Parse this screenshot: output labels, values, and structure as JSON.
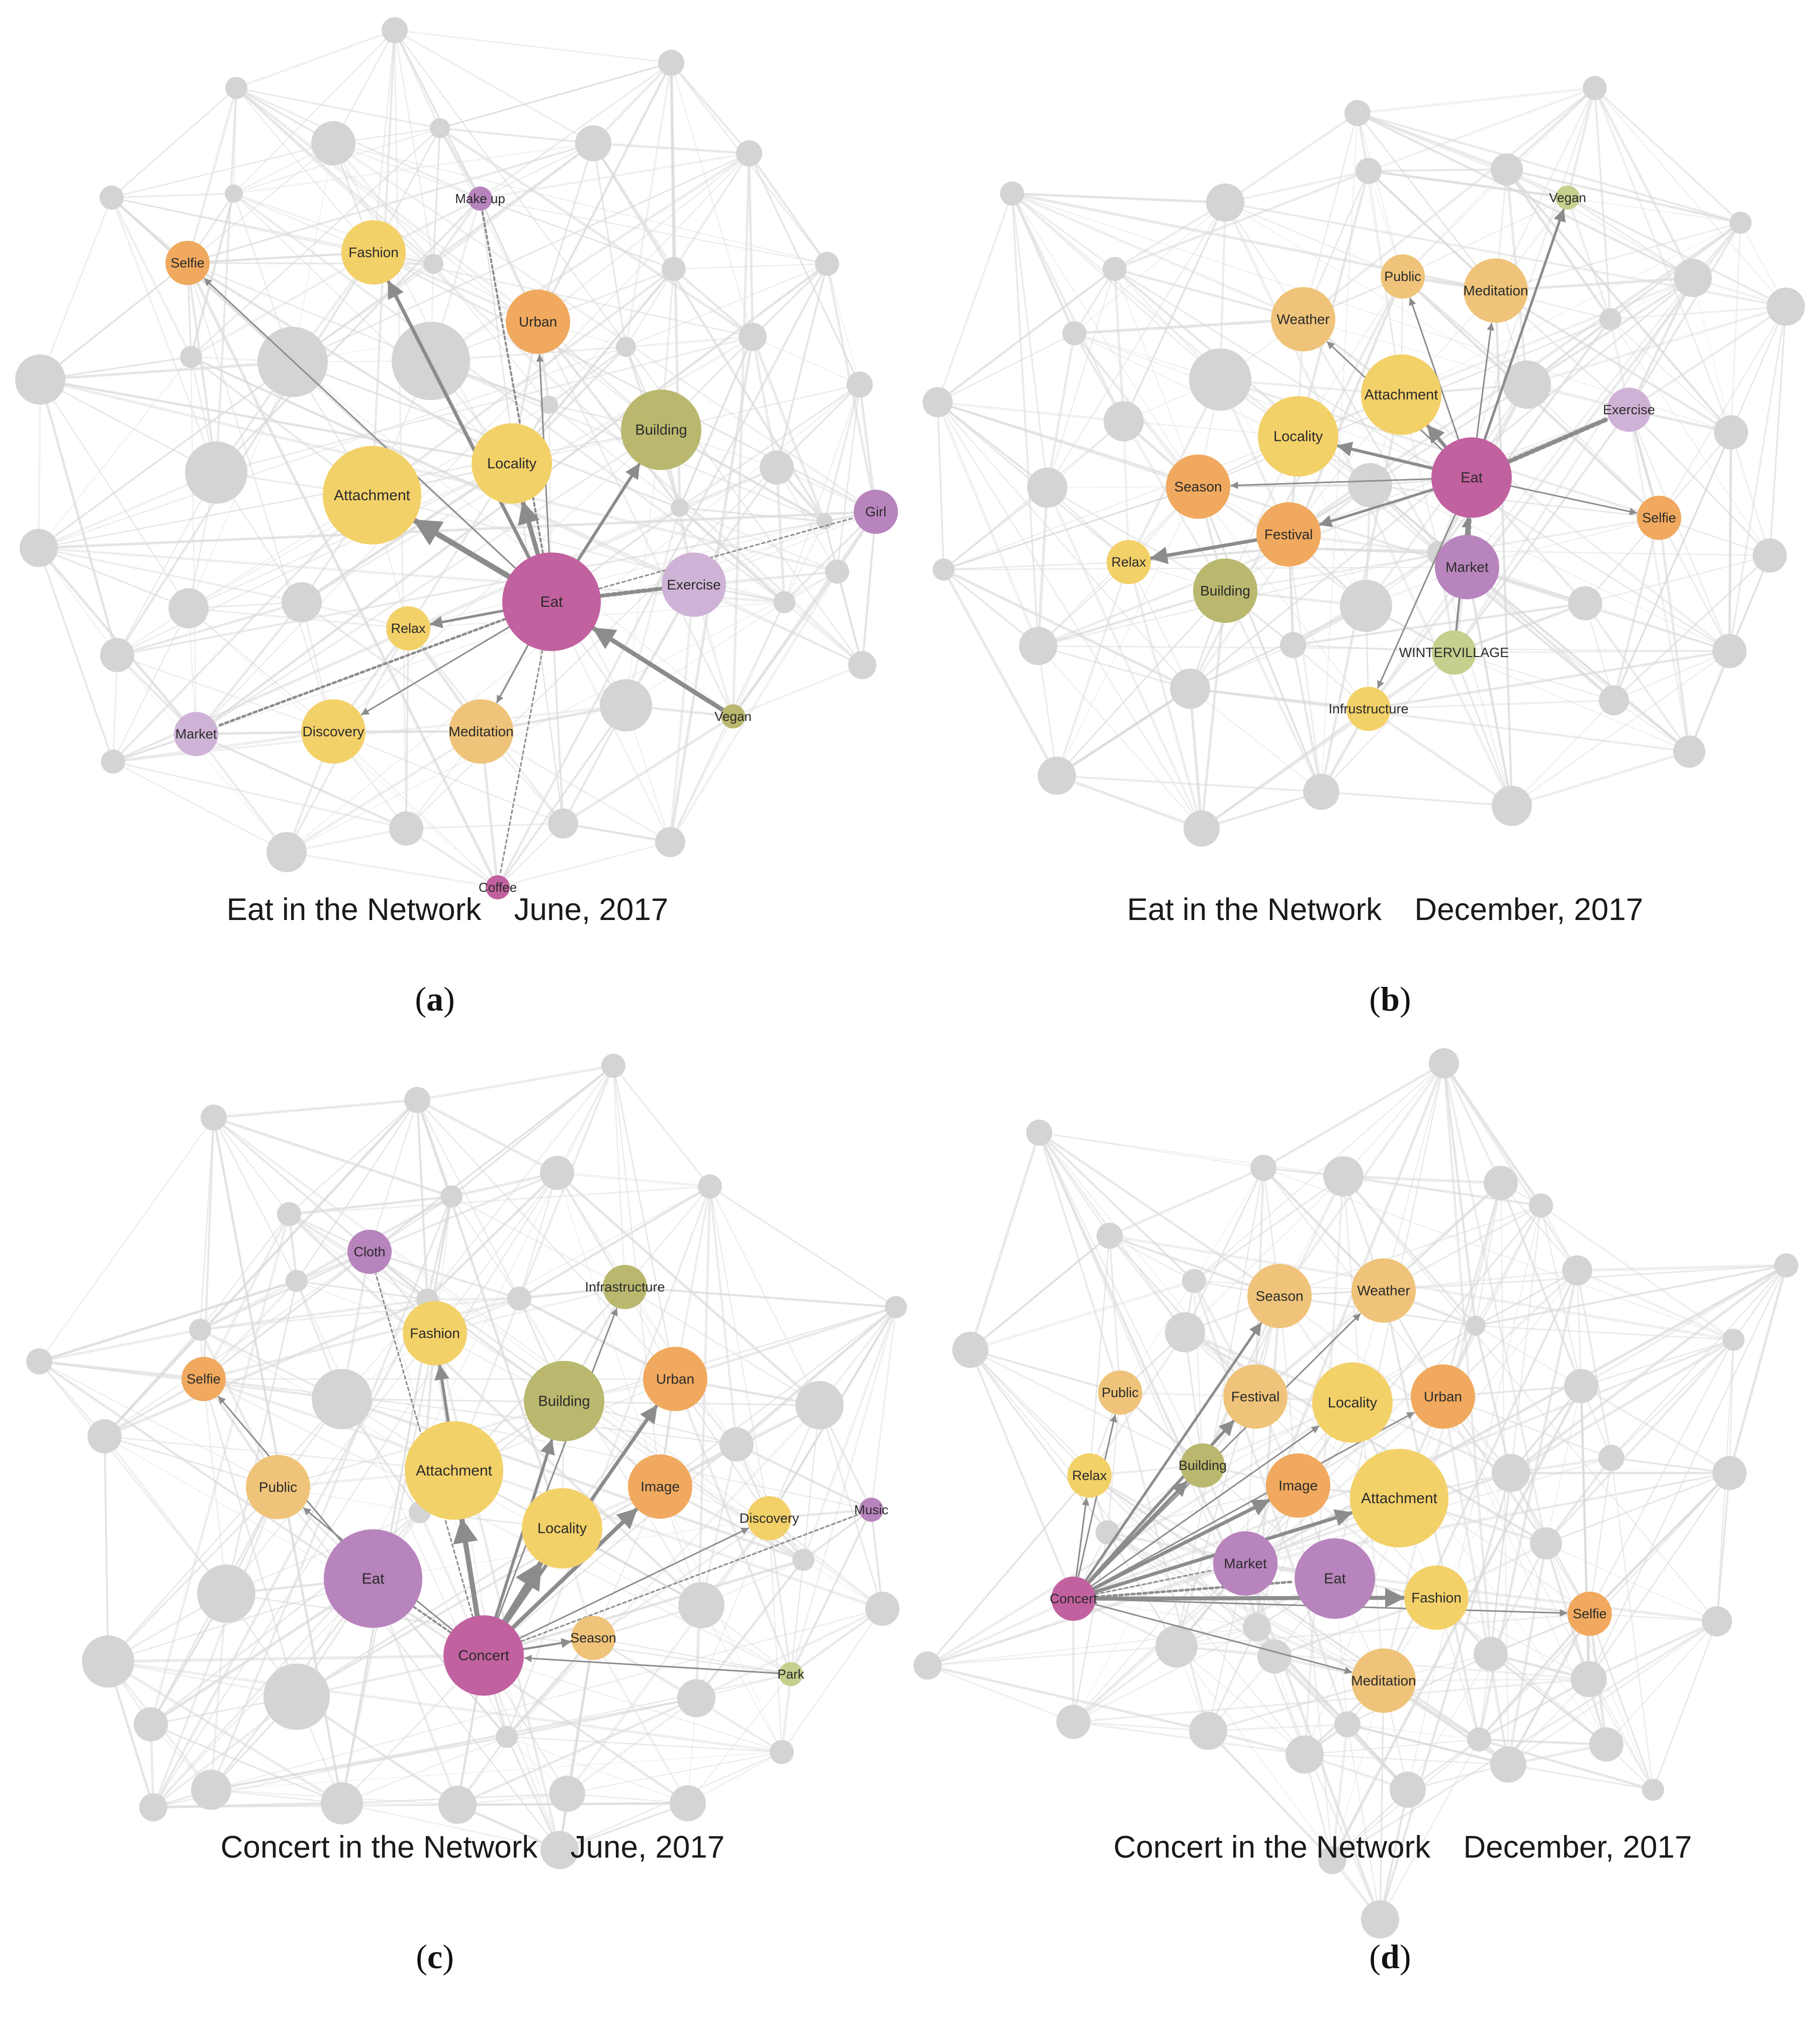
{
  "colors": {
    "background_node": "#d4d4d4",
    "background_edge": "#dadada",
    "arrow": "#8c8c8c",
    "magenta": "#c2619f",
    "lilac": "#cfb3d6",
    "purple": "#b884bd",
    "yellow": "#f3d169",
    "light_orange": "#efc47a",
    "orange": "#f0a95e",
    "olive": "#b9b86e",
    "light_olive": "#c6cf8d"
  },
  "panels": [
    {
      "id": "a",
      "letter": "a",
      "caption_main": "Eat in the Network",
      "caption_date": "June, 2017",
      "center": "Eat",
      "nodes": [
        {
          "label": "Eat",
          "color": "magenta",
          "size": 5
        },
        {
          "label": "Make up",
          "color": "purple",
          "size": 1
        },
        {
          "label": "Fashion",
          "color": "yellow",
          "size": 3
        },
        {
          "label": "Selfie",
          "color": "orange",
          "size": 2
        },
        {
          "label": "Urban",
          "color": "orange",
          "size": 3
        },
        {
          "label": "Building",
          "color": "olive",
          "size": 4
        },
        {
          "label": "Locality",
          "color": "yellow",
          "size": 4
        },
        {
          "label": "Attachment",
          "color": "yellow",
          "size": 5
        },
        {
          "label": "Girl",
          "color": "purple",
          "size": 2
        },
        {
          "label": "Exercise",
          "color": "lilac",
          "size": 3
        },
        {
          "label": "Relax",
          "color": "yellow",
          "size": 2
        },
        {
          "label": "Market",
          "color": "lilac",
          "size": 2
        },
        {
          "label": "Discovery",
          "color": "yellow",
          "size": 3
        },
        {
          "label": "Meditation",
          "color": "light_orange",
          "size": 3
        },
        {
          "label": "Vegan",
          "color": "olive",
          "size": 1
        },
        {
          "label": "Coffee",
          "color": "magenta",
          "size": 1
        }
      ]
    },
    {
      "id": "b",
      "letter": "b",
      "caption_main": "Eat in the Network",
      "caption_date": "December, 2017",
      "center": "Eat",
      "nodes": [
        {
          "label": "Eat",
          "color": "magenta",
          "size": 4
        },
        {
          "label": "Vegan",
          "color": "light_olive",
          "size": 1
        },
        {
          "label": "Public",
          "color": "light_orange",
          "size": 2
        },
        {
          "label": "Meditation",
          "color": "light_orange",
          "size": 3
        },
        {
          "label": "Weather",
          "color": "light_orange",
          "size": 3
        },
        {
          "label": "Attachment",
          "color": "yellow",
          "size": 4
        },
        {
          "label": "Exercise",
          "color": "lilac",
          "size": 2
        },
        {
          "label": "Locality",
          "color": "yellow",
          "size": 4
        },
        {
          "label": "Season",
          "color": "orange",
          "size": 3
        },
        {
          "label": "Festival",
          "color": "orange",
          "size": 3
        },
        {
          "label": "Selfie",
          "color": "orange",
          "size": 2
        },
        {
          "label": "Relax",
          "color": "yellow",
          "size": 2
        },
        {
          "label": "Building",
          "color": "olive",
          "size": 3
        },
        {
          "label": "Market",
          "color": "purple",
          "size": 3
        },
        {
          "label": "WINTERVILLAGE",
          "color": "light_olive",
          "size": 2
        },
        {
          "label": "Infrustructure",
          "color": "yellow",
          "size": 2
        }
      ]
    },
    {
      "id": "c",
      "letter": "c",
      "caption_main": "Concert in the Network",
      "caption_date": "June, 2017",
      "center": "Concert",
      "nodes": [
        {
          "label": "Concert",
          "color": "magenta",
          "size": 4
        },
        {
          "label": "Cloth",
          "color": "purple",
          "size": 2
        },
        {
          "label": "Infrastructure",
          "color": "olive",
          "size": 2
        },
        {
          "label": "Fashion",
          "color": "yellow",
          "size": 3
        },
        {
          "label": "Selfie",
          "color": "orange",
          "size": 2
        },
        {
          "label": "Building",
          "color": "olive",
          "size": 4
        },
        {
          "label": "Urban",
          "color": "orange",
          "size": 3
        },
        {
          "label": "Attachment",
          "color": "yellow",
          "size": 5
        },
        {
          "label": "Public",
          "color": "light_orange",
          "size": 3
        },
        {
          "label": "Image",
          "color": "orange",
          "size": 3
        },
        {
          "label": "Discovery",
          "color": "yellow",
          "size": 2
        },
        {
          "label": "Music",
          "color": "purple",
          "size": 1
        },
        {
          "label": "Locality",
          "color": "yellow",
          "size": 4
        },
        {
          "label": "Eat",
          "color": "purple",
          "size": 5
        },
        {
          "label": "Season",
          "color": "light_orange",
          "size": 2
        },
        {
          "label": "Park",
          "color": "light_olive",
          "size": 1
        }
      ]
    },
    {
      "id": "d",
      "letter": "d",
      "caption_main": "Concert in the Network",
      "caption_date": "December, 2017",
      "center": "Concert",
      "nodes": [
        {
          "label": "Concert",
          "color": "magenta",
          "size": 2
        },
        {
          "label": "Season",
          "color": "light_orange",
          "size": 3
        },
        {
          "label": "Weather",
          "color": "light_orange",
          "size": 3
        },
        {
          "label": "Public",
          "color": "light_orange",
          "size": 2
        },
        {
          "label": "Festival",
          "color": "light_orange",
          "size": 3
        },
        {
          "label": "Locality",
          "color": "yellow",
          "size": 4
        },
        {
          "label": "Urban",
          "color": "orange",
          "size": 3
        },
        {
          "label": "Relax",
          "color": "yellow",
          "size": 2
        },
        {
          "label": "Building",
          "color": "olive",
          "size": 2
        },
        {
          "label": "Image",
          "color": "orange",
          "size": 3
        },
        {
          "label": "Attachment",
          "color": "yellow",
          "size": 5
        },
        {
          "label": "Market",
          "color": "purple",
          "size": 3
        },
        {
          "label": "Eat",
          "color": "purple",
          "size": 4
        },
        {
          "label": "Fashion",
          "color": "yellow",
          "size": 3
        },
        {
          "label": "Selfie",
          "color": "orange",
          "size": 2
        },
        {
          "label": "Meditation",
          "color": "light_orange",
          "size": 3
        }
      ]
    }
  ]
}
